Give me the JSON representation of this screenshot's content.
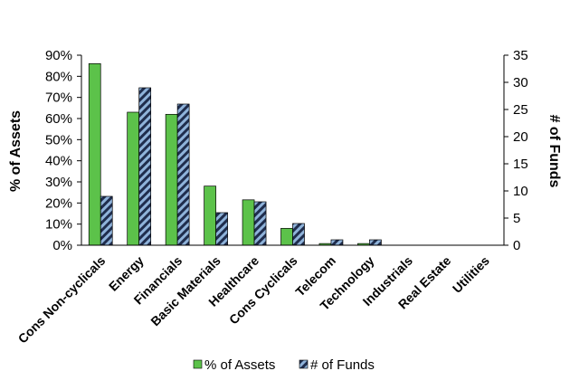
{
  "chart_data": {
    "type": "bar",
    "categories": [
      "Cons Non-cyclicals",
      "Energy",
      "Financials",
      "Basic Materials",
      "Healthcare",
      "Cons Cyclicals",
      "Telecom",
      "Technology",
      "Industrials",
      "Real Estate",
      "Utilities"
    ],
    "series": [
      {
        "name": "% of Assets",
        "axis": "left",
        "values": [
          86,
          63,
          62,
          28,
          21.5,
          8,
          0.8,
          0.8,
          0,
          0,
          0
        ],
        "color": "#5cc24a"
      },
      {
        "name": "# of Funds",
        "axis": "right",
        "values": [
          9,
          29,
          26,
          6,
          8,
          4,
          1,
          1,
          0,
          0,
          0
        ],
        "color": "#8fb3da",
        "pattern": "dark diagonal stripes"
      }
    ],
    "ylabel_left": "% of Assets",
    "ylabel_right": "# of Funds",
    "ylim_left": [
      0,
      90
    ],
    "ylim_right": [
      0,
      35
    ],
    "yticks_left": [
      "0%",
      "10%",
      "20%",
      "30%",
      "40%",
      "50%",
      "60%",
      "70%",
      "80%",
      "90%"
    ],
    "yticks_right": [
      "0",
      "5",
      "10",
      "15",
      "20",
      "25",
      "30",
      "35"
    ],
    "grid": false,
    "legend_position": "bottom"
  }
}
